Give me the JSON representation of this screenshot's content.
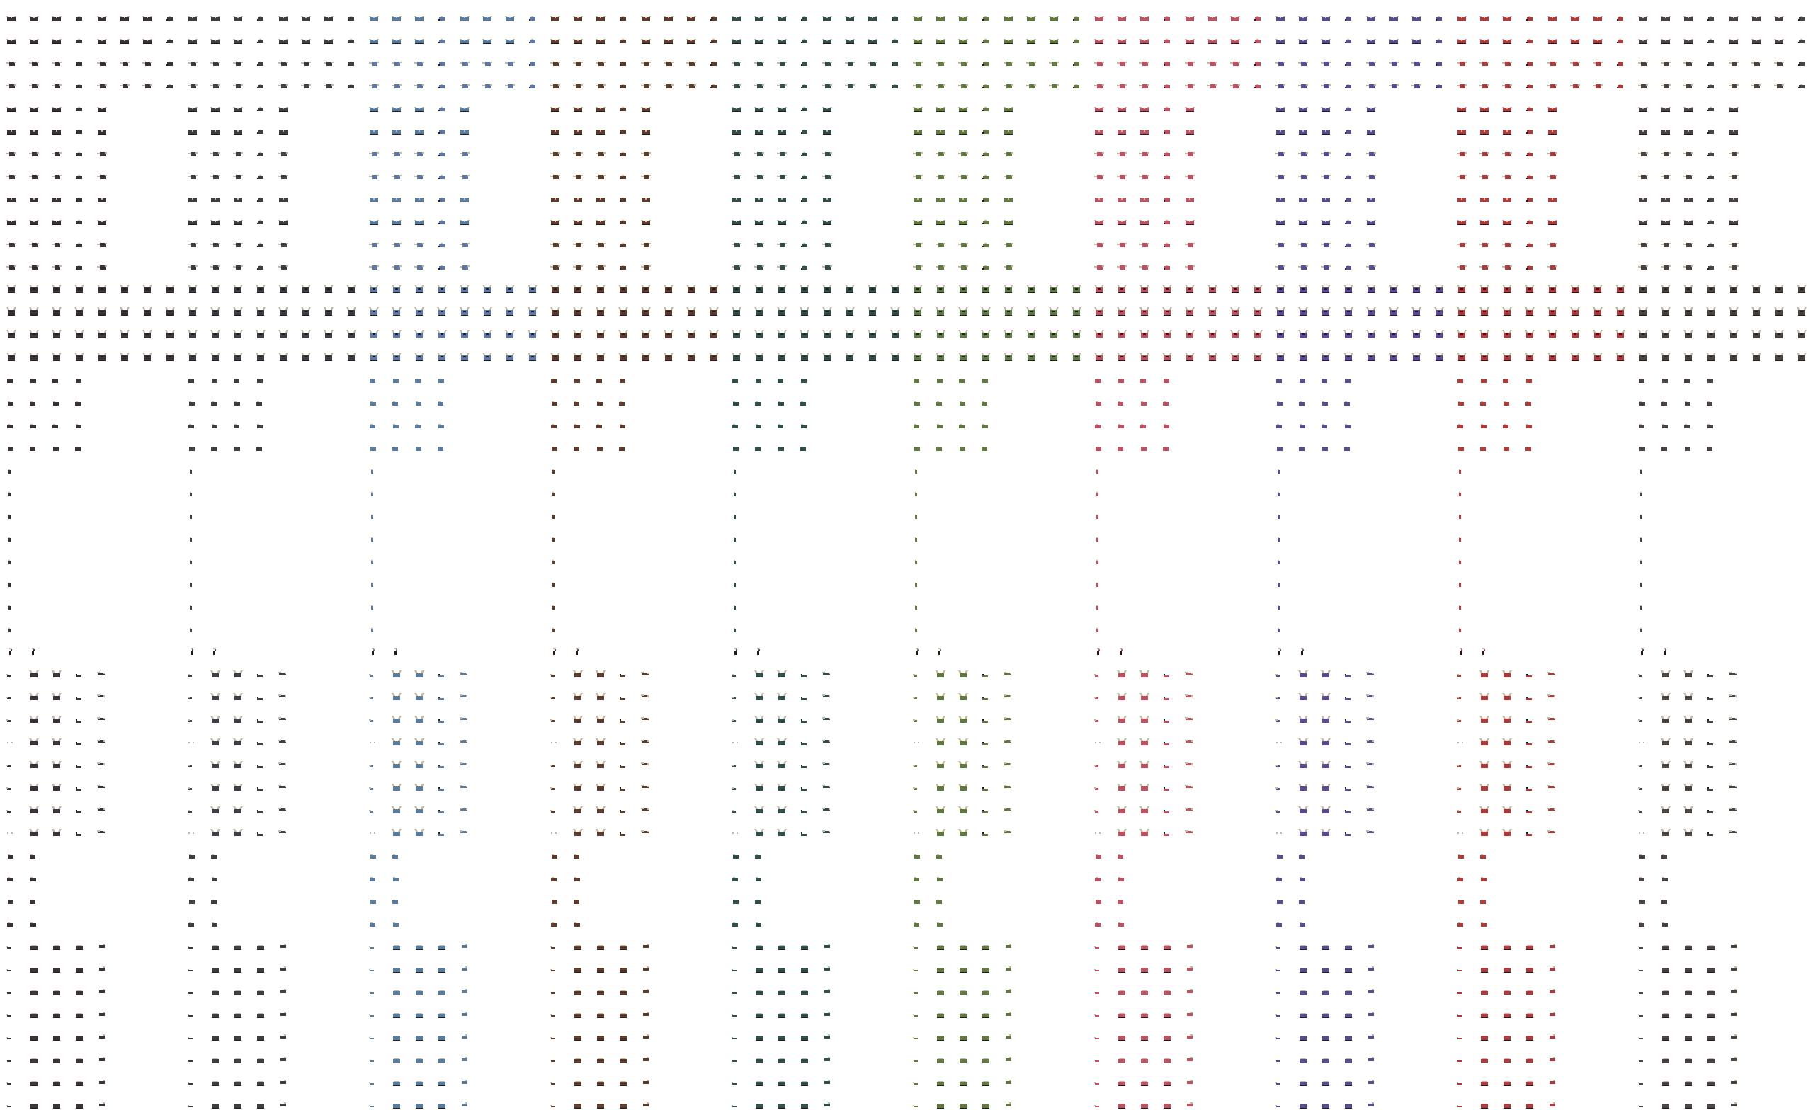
{
  "sprite_sheet": {
    "variants": [
      {
        "name": "charcoal",
        "color": "#3a3238"
      },
      {
        "name": "slate",
        "color": "#3e3c44"
      },
      {
        "name": "blue",
        "color": "#5a7aa0"
      },
      {
        "name": "brown",
        "color": "#5e3a28"
      },
      {
        "name": "teal",
        "color": "#2f5048"
      },
      {
        "name": "olive",
        "color": "#5e7a40"
      },
      {
        "name": "rose",
        "color": "#c05060"
      },
      {
        "name": "indigo",
        "color": "#5a4a90"
      },
      {
        "name": "red",
        "color": "#b03a38"
      },
      {
        "name": "umber",
        "color": "#4a4240"
      }
    ],
    "trim_color": "#c8b8a0",
    "outline_color": "#221c20",
    "background": "#ffffff"
  }
}
